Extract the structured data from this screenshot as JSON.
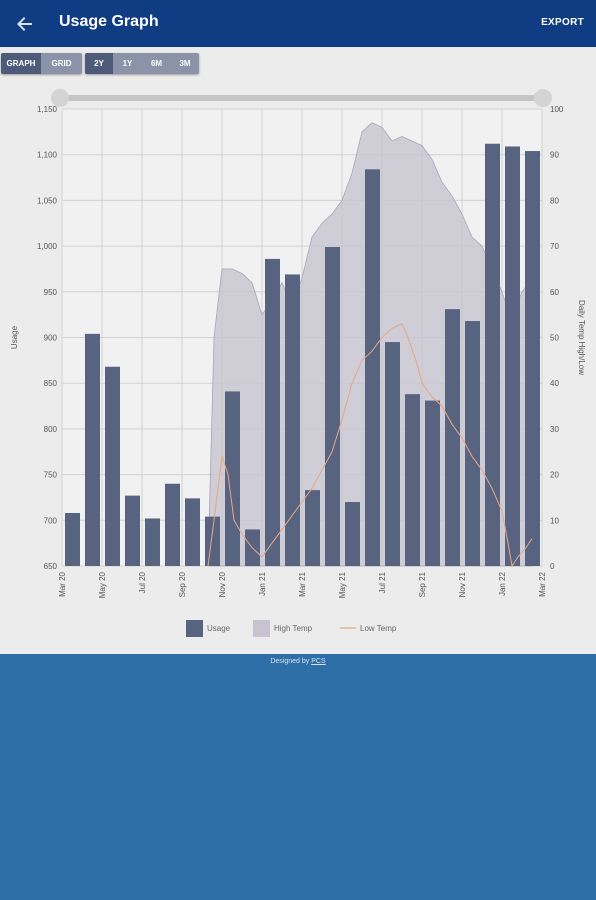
{
  "app": {
    "title": "Usage Graph",
    "export_label": "EXPORT"
  },
  "view_toggle": [
    {
      "label": "GRAPH",
      "active": true
    },
    {
      "label": "GRID",
      "active": false
    }
  ],
  "range_toggle": [
    {
      "label": "2Y",
      "active": true
    },
    {
      "label": "1Y",
      "active": false
    },
    {
      "label": "6M",
      "active": false
    },
    {
      "label": "3M",
      "active": false
    }
  ],
  "footer": {
    "prefix": "Designed by ",
    "link": "PCS"
  },
  "colors": {
    "appbar": "#0f3c82",
    "usage": "#58637f",
    "high_temp": "#c7c4d0",
    "low_temp": "#e8a789",
    "page_bg": "#2f6fa8"
  },
  "chart_data": {
    "type": "bar",
    "ylabel": "Usage",
    "y2label": "Daily Temp High/Low",
    "ylim": [
      650,
      1150
    ],
    "y2lim": [
      0,
      100
    ],
    "ytick_labels": [
      "650",
      "700",
      "750",
      "800",
      "850",
      "900",
      "950",
      "1,000",
      "1,050",
      "1,100",
      "1,150"
    ],
    "y2tick_labels": [
      "0",
      "10",
      "20",
      "30",
      "40",
      "50",
      "60",
      "70",
      "80",
      "90",
      "100"
    ],
    "xticks": [
      "Mar 20",
      "May 20",
      "Jul 20",
      "Sep 20",
      "Nov 20",
      "Jan 21",
      "Mar 21",
      "May 21",
      "Jul 21",
      "Sep 21",
      "Nov 21",
      "Jan 22",
      "Mar 22"
    ],
    "grid": true,
    "legend": {
      "position": "bottom",
      "entries": [
        "Usage",
        "High Temp",
        "Low Temp"
      ]
    },
    "series": [
      {
        "name": "Usage",
        "type": "bar",
        "values": [
          708,
          904,
          868,
          727,
          702,
          740,
          724,
          704,
          841,
          690,
          986,
          969,
          733,
          999,
          720,
          1084,
          895,
          838,
          831,
          931,
          918,
          1112,
          1109,
          1104
        ]
      },
      {
        "name": "High Temp",
        "type": "area",
        "axis": "right",
        "points": [
          [
            7.3,
            0
          ],
          [
            7.6,
            50
          ],
          [
            8,
            65
          ],
          [
            8.5,
            65
          ],
          [
            9,
            64
          ],
          [
            9.5,
            62
          ],
          [
            10,
            55
          ],
          [
            10.5,
            58
          ],
          [
            11,
            62
          ],
          [
            11.5,
            57
          ],
          [
            12,
            63
          ],
          [
            12.5,
            72
          ],
          [
            13,
            75
          ],
          [
            13.5,
            77
          ],
          [
            14,
            80
          ],
          [
            14.5,
            86
          ],
          [
            15,
            95
          ],
          [
            15.5,
            97
          ],
          [
            16,
            96
          ],
          [
            16.5,
            93
          ],
          [
            17,
            94
          ],
          [
            17.5,
            93
          ],
          [
            18,
            92
          ],
          [
            18.5,
            89
          ],
          [
            19,
            84
          ],
          [
            19.5,
            81
          ],
          [
            20,
            77
          ],
          [
            20.5,
            72
          ],
          [
            21,
            70
          ],
          [
            21.5,
            65
          ],
          [
            22,
            60
          ],
          [
            22.3,
            56
          ],
          [
            22.5,
            55
          ],
          [
            23,
            60
          ],
          [
            23.5,
            63
          ]
        ]
      },
      {
        "name": "Low Temp",
        "type": "line",
        "axis": "right",
        "points": [
          [
            7.3,
            0
          ],
          [
            7.6,
            10
          ],
          [
            8,
            24
          ],
          [
            8.3,
            20
          ],
          [
            8.6,
            10
          ],
          [
            9,
            7
          ],
          [
            9.5,
            4
          ],
          [
            10,
            2
          ],
          [
            10.5,
            5
          ],
          [
            11,
            8
          ],
          [
            11.5,
            11
          ],
          [
            12,
            14
          ],
          [
            12.5,
            17
          ],
          [
            13,
            21
          ],
          [
            13.5,
            25
          ],
          [
            14,
            32
          ],
          [
            14.5,
            40
          ],
          [
            15,
            45
          ],
          [
            15.5,
            47
          ],
          [
            16,
            50
          ],
          [
            16.5,
            52
          ],
          [
            17,
            53
          ],
          [
            17.3,
            50
          ],
          [
            17.7,
            45
          ],
          [
            18,
            40
          ],
          [
            18.5,
            37
          ],
          [
            19,
            35
          ],
          [
            19.5,
            31
          ],
          [
            20,
            28
          ],
          [
            20.5,
            24
          ],
          [
            21,
            21
          ],
          [
            21.5,
            17
          ],
          [
            22,
            12
          ],
          [
            22.3,
            5
          ],
          [
            22.5,
            0
          ],
          [
            22.8,
            2
          ],
          [
            23.2,
            4
          ],
          [
            23.5,
            6
          ]
        ]
      }
    ]
  }
}
